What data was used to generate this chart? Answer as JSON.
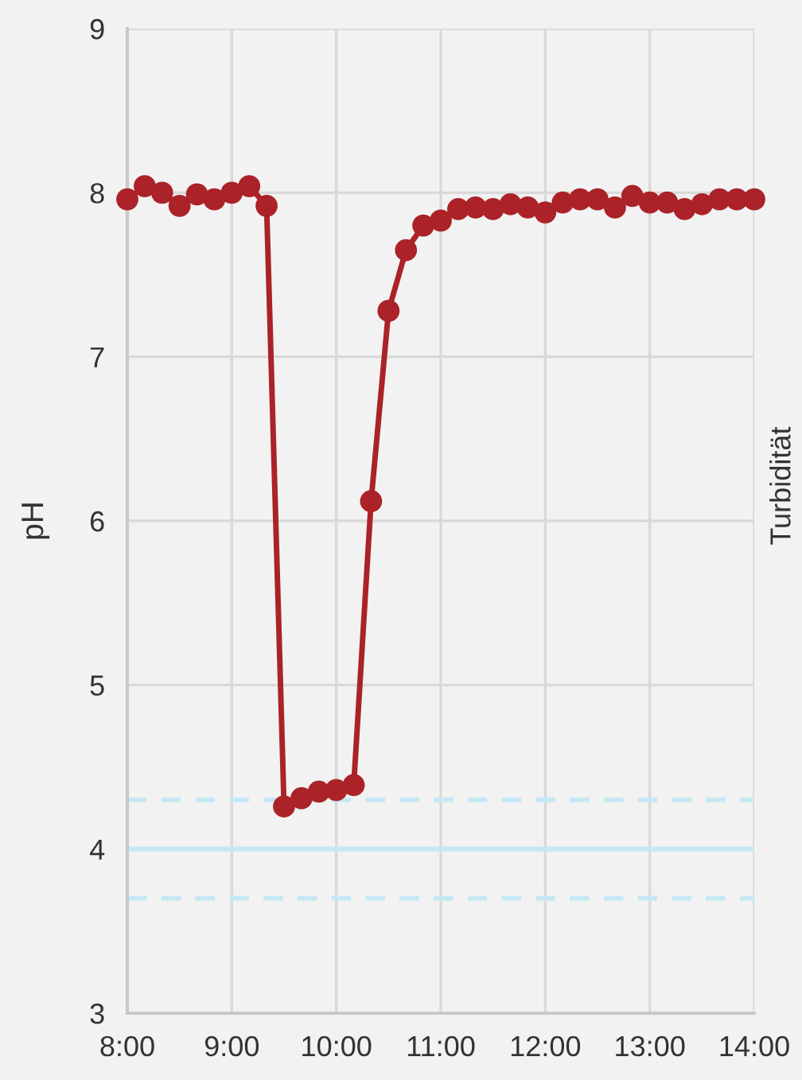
{
  "chart_data": {
    "type": "line",
    "ylabel": "pH",
    "y2label": "Turbidität",
    "x": [
      8.0,
      8.167,
      8.333,
      8.5,
      8.667,
      8.833,
      9.0,
      9.167,
      9.333,
      9.5,
      9.667,
      9.833,
      10.0,
      10.167,
      10.333,
      10.5,
      10.667,
      10.833,
      11.0,
      11.167,
      11.333,
      11.5,
      11.667,
      11.833,
      12.0,
      12.167,
      12.333,
      12.5,
      12.667,
      12.833,
      13.0,
      13.167,
      13.333,
      13.5,
      13.667,
      13.833,
      14.0
    ],
    "series": [
      {
        "color": "#ab2228",
        "values": [
          7.96,
          8.04,
          8.0,
          7.92,
          7.99,
          7.96,
          8.0,
          8.04,
          7.92,
          4.26,
          4.31,
          4.35,
          4.36,
          4.39,
          6.12,
          7.28,
          7.65,
          7.8,
          7.83,
          7.9,
          7.91,
          7.9,
          7.93,
          7.91,
          7.88,
          7.94,
          7.96,
          7.96,
          7.91,
          7.98,
          7.94,
          7.94,
          7.9,
          7.93,
          7.96,
          7.96,
          7.96
        ]
      }
    ],
    "xlim": [
      8,
      14
    ],
    "xticks": [
      {
        "value": 8,
        "label": "8:00"
      },
      {
        "value": 9,
        "label": "9:00"
      },
      {
        "value": 10,
        "label": "10:00"
      },
      {
        "value": 11,
        "label": "11:00"
      },
      {
        "value": 12,
        "label": "12:00"
      },
      {
        "value": 13,
        "label": "13:00"
      },
      {
        "value": 14,
        "label": "14:00"
      }
    ],
    "ylim": [
      3,
      9
    ],
    "yticks": [
      3,
      4,
      5,
      6,
      7,
      8,
      9
    ],
    "ref_lines": [
      {
        "axis": "y",
        "value": 4.3,
        "color": "#c5e8f4",
        "line_style": "dashed"
      },
      {
        "axis": "y",
        "value": 4,
        "color": "#c5e8f4",
        "line_style": "solid"
      },
      {
        "axis": "y",
        "value": 3.7,
        "color": "#c5e8f4",
        "line_style": "dashed"
      }
    ],
    "grid": true,
    "marker": "circle",
    "line_style": "solid"
  }
}
